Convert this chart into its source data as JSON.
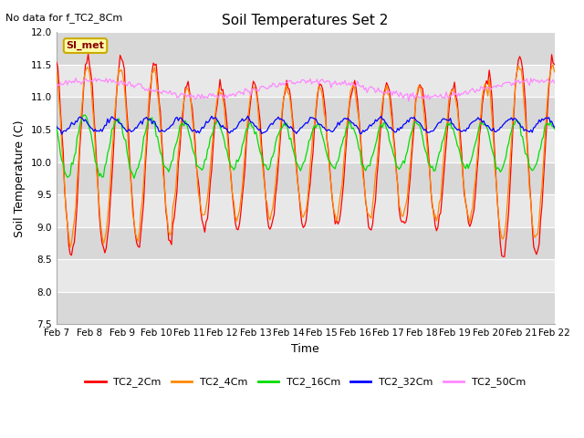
{
  "title": "Soil Temperatures Set 2",
  "subtitle": "No data for f_TC2_8Cm",
  "xlabel": "Time",
  "ylabel": "Soil Temperature (C)",
  "ylim": [
    7.5,
    12.0
  ],
  "yticks": [
    7.5,
    8.0,
    8.5,
    9.0,
    9.5,
    10.0,
    10.5,
    11.0,
    11.5,
    12.0
  ],
  "xtick_labels": [
    "Feb 7",
    "Feb 8",
    "Feb 9",
    "Feb 10",
    "Feb 11",
    "Feb 12",
    "Feb 13",
    "Feb 14",
    "Feb 15",
    "Feb 16",
    "Feb 17",
    "Feb 18",
    "Feb 19",
    "Feb 20",
    "Feb 21",
    "Feb 22"
  ],
  "colors": {
    "TC2_2Cm": "#ff0000",
    "TC2_4Cm": "#ff8800",
    "TC2_16Cm": "#00dd00",
    "TC2_32Cm": "#0000ff",
    "TC2_50Cm": "#ff88ff"
  },
  "legend_label": "SI_met",
  "legend_box_facecolor": "#ffffaa",
  "legend_box_edgecolor": "#ccaa00",
  "legend_text_color": "#880000",
  "bg_color": "#ffffff",
  "plot_bg_alt1": "#d8d8d8",
  "plot_bg_alt2": "#e8e8e8",
  "title_fontsize": 11,
  "subtitle_fontsize": 8,
  "tick_fontsize": 7.5,
  "label_fontsize": 9
}
